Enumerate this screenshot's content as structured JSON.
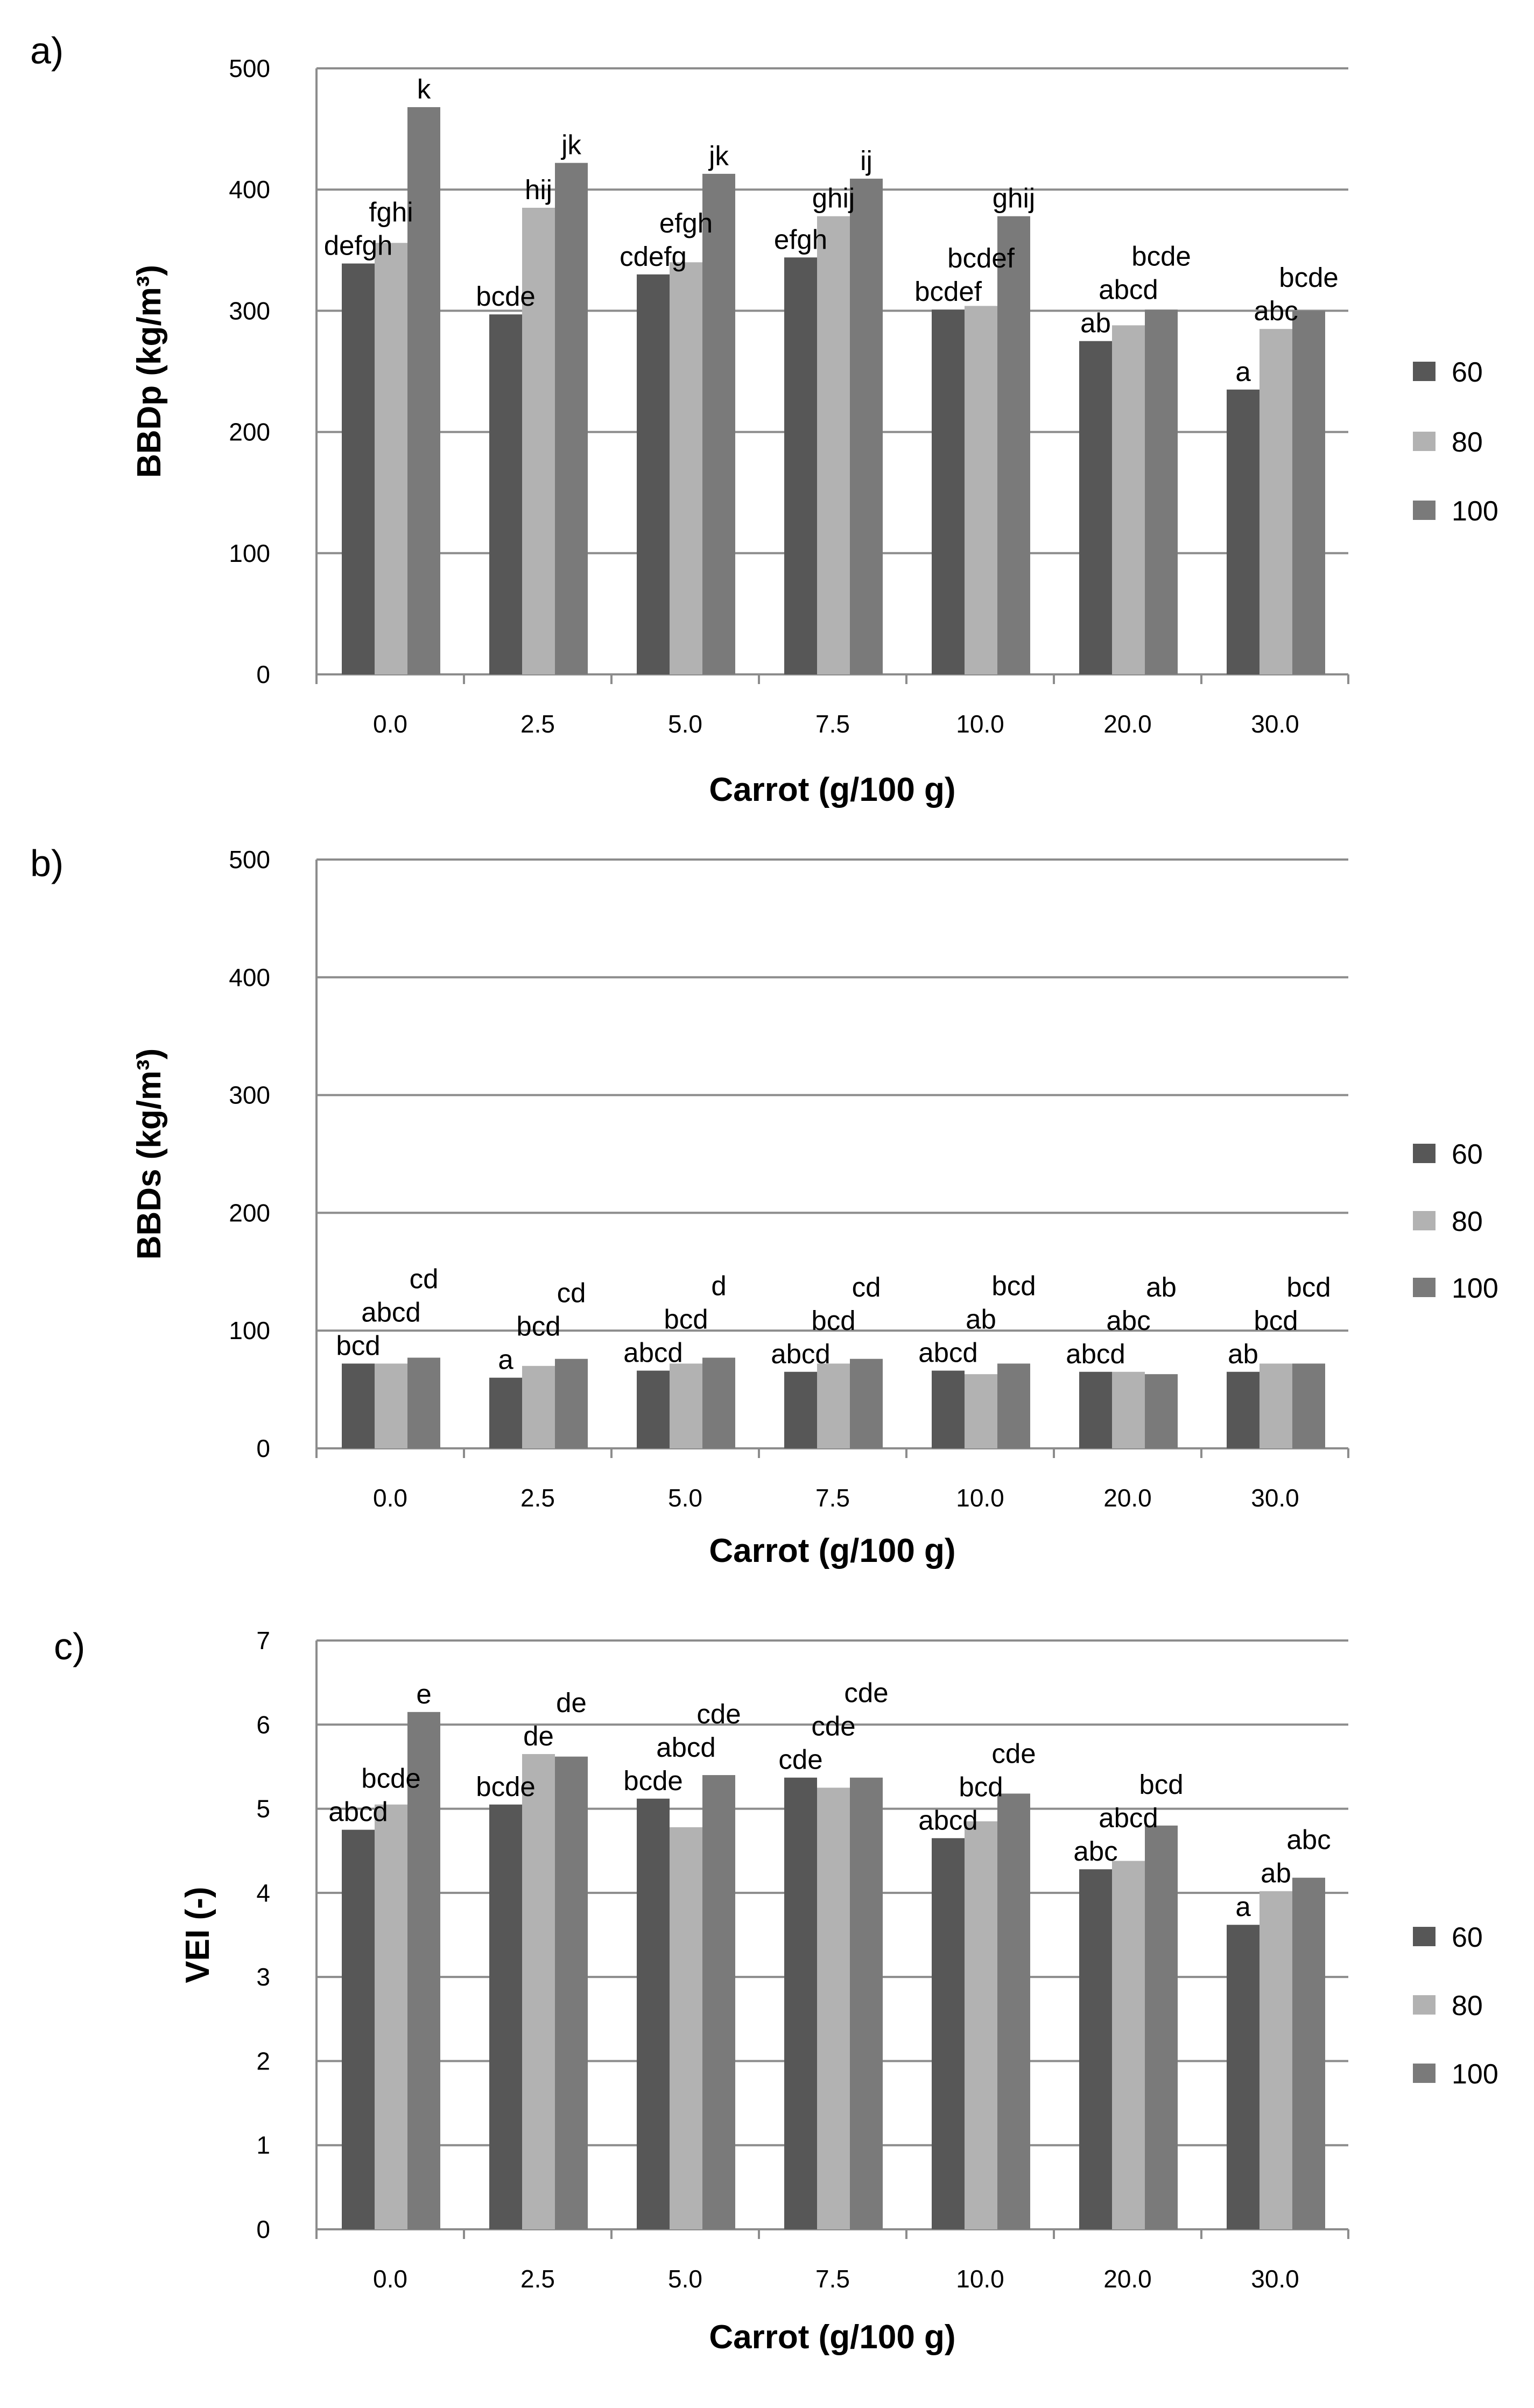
{
  "chart_data": [
    {
      "panel": "a)",
      "type": "bar",
      "categories": [
        "0.0",
        "2.5",
        "5.0",
        "7.5",
        "10.0",
        "20.0",
        "30.0"
      ],
      "yticks": [
        "0",
        "100",
        "200",
        "300",
        "400",
        "500"
      ],
      "ylim": [
        0,
        500
      ],
      "xlabel": "Carrot (g/100 g)",
      "ylabel": "BBDp (kg/m³)",
      "legend_position": "right",
      "series": [
        {
          "name": "60",
          "color": "#575757",
          "values": [
            339,
            297,
            330,
            344,
            301,
            275,
            235
          ],
          "labels": [
            "defgh",
            "bcde",
            "cdefg",
            "efgh",
            "bcdef",
            "ab",
            "a"
          ]
        },
        {
          "name": "80",
          "color": "#b2b2b2",
          "values": [
            356,
            385,
            340,
            378,
            304,
            288,
            285
          ],
          "labels": [
            "fghi",
            "hij",
            "efgh",
            "ghij",
            "bcdef",
            "abcd",
            "abc"
          ]
        },
        {
          "name": "100",
          "color": "#7a7a7a",
          "values": [
            468,
            422,
            413,
            409,
            378,
            301,
            300
          ],
          "labels": [
            "k",
            "jk",
            "jk",
            "ij",
            "ghij",
            "bcde",
            "bcde"
          ]
        }
      ]
    },
    {
      "panel": "b)",
      "type": "bar",
      "categories": [
        "0.0",
        "2.5",
        "5.0",
        "7.5",
        "10.0",
        "20.0",
        "30.0"
      ],
      "yticks": [
        "0",
        "100",
        "200",
        "300",
        "400",
        "500"
      ],
      "ylim": [
        0,
        500
      ],
      "xlabel": "Carrot (g/100 g)",
      "ylabel": "BBDs (kg/m³)",
      "legend_position": "right",
      "series": [
        {
          "name": "60",
          "color": "#575757",
          "values": [
            72,
            60,
            66,
            65,
            66,
            65,
            65
          ],
          "labels": [
            "bcd",
            "a",
            "abcd",
            "abcd",
            "abcd",
            "abcd",
            "ab"
          ]
        },
        {
          "name": "80",
          "color": "#b2b2b2",
          "values": [
            72,
            70,
            72,
            72,
            63,
            65,
            72
          ],
          "labels": [
            "abcd",
            "bcd",
            "bcd",
            "bcd",
            "ab",
            "abc",
            "bcd"
          ]
        },
        {
          "name": "100",
          "color": "#7a7a7a",
          "values": [
            77,
            76,
            77,
            76,
            72,
            63,
            72
          ],
          "labels": [
            "cd",
            "cd",
            "d",
            "cd",
            "bcd",
            "ab",
            "bcd"
          ]
        }
      ]
    },
    {
      "panel": "c)",
      "type": "bar",
      "categories": [
        "0.0",
        "2.5",
        "5.0",
        "7.5",
        "10.0",
        "20.0",
        "30.0"
      ],
      "yticks": [
        "0",
        "1",
        "2",
        "3",
        "4",
        "5",
        "6",
        "7"
      ],
      "ylim": [
        0,
        7
      ],
      "xlabel": "Carrot (g/100 g)",
      "ylabel": "VEI (-)",
      "legend_position": "right",
      "series": [
        {
          "name": "60",
          "color": "#575757",
          "values": [
            4.75,
            5.05,
            5.12,
            5.37,
            4.65,
            4.28,
            3.62
          ],
          "labels": [
            "abcd",
            "bcde",
            "bcde",
            "cde",
            "abcd",
            "abc",
            "a"
          ]
        },
        {
          "name": "80",
          "color": "#b2b2b2",
          "values": [
            5.05,
            5.65,
            4.78,
            5.25,
            4.85,
            4.38,
            4.02
          ],
          "labels": [
            "bcde",
            "de",
            "abcd",
            "cde",
            "bcd",
            "abcd",
            "ab"
          ]
        },
        {
          "name": "100",
          "color": "#7a7a7a",
          "values": [
            6.15,
            5.62,
            5.4,
            5.37,
            5.18,
            4.8,
            4.18
          ],
          "labels": [
            "e",
            "de",
            "cde",
            "cde",
            "cde",
            "bcd",
            "abc"
          ]
        }
      ]
    }
  ]
}
